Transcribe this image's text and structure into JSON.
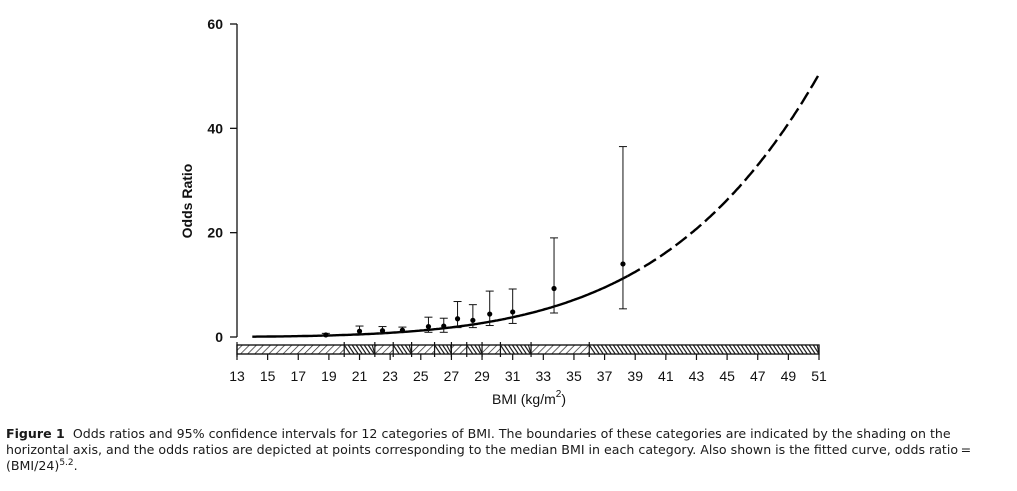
{
  "chart_data": {
    "type": "scatter",
    "xlabel": "BMI (kg/m",
    "xlabel_sup": "2",
    "xlabel_close": ")",
    "ylabel": "Odds Ratio",
    "xlim": [
      13,
      51
    ],
    "ylim": [
      0,
      60
    ],
    "x_ticks": [
      13,
      15,
      17,
      19,
      21,
      23,
      25,
      27,
      29,
      31,
      33,
      35,
      37,
      39,
      41,
      43,
      45,
      47,
      49,
      51
    ],
    "y_ticks": [
      0,
      20,
      40,
      60
    ],
    "points": [
      {
        "x": 18.8,
        "y": 0.4,
        "lo": 0.2,
        "hi": 0.7
      },
      {
        "x": 21.0,
        "y": 1.1,
        "lo": 0.6,
        "hi": 2.1
      },
      {
        "x": 22.5,
        "y": 1.2,
        "lo": 0.7,
        "hi": 2.0
      },
      {
        "x": 23.8,
        "y": 1.3,
        "lo": 0.9,
        "hi": 1.9
      },
      {
        "x": 25.5,
        "y": 2.0,
        "lo": 0.9,
        "hi": 3.8
      },
      {
        "x": 26.5,
        "y": 2.1,
        "lo": 0.9,
        "hi": 3.6
      },
      {
        "x": 27.4,
        "y": 3.5,
        "lo": 1.8,
        "hi": 6.8
      },
      {
        "x": 28.4,
        "y": 3.2,
        "lo": 1.8,
        "hi": 6.2
      },
      {
        "x": 29.5,
        "y": 4.4,
        "lo": 2.2,
        "hi": 8.8
      },
      {
        "x": 31.0,
        "y": 4.8,
        "lo": 2.6,
        "hi": 9.2
      },
      {
        "x": 33.7,
        "y": 9.3,
        "lo": 4.6,
        "hi": 19.0
      },
      {
        "x": 38.2,
        "y": 14.0,
        "lo": 5.4,
        "hi": 36.5
      }
    ],
    "curve": {
      "label": "odds ratio = (BMI/24)^5.2",
      "base": 24,
      "exponent": 5.2,
      "solid_until": 38.5,
      "x_start": 14,
      "x_end": 51
    },
    "category_boundaries": [
      13,
      20,
      22,
      23.2,
      24.4,
      25.9,
      27,
      28,
      29,
      30.2,
      32.2,
      36,
      51
    ]
  },
  "caption": {
    "label": "Figure 1",
    "text": "Odds ratios and 95% confidence intervals for 12 categories of BMI. The boundaries of these categories are indicated by the shading on the horizontal axis, and the odds ratios are depicted at points corresponding to the median BMI in each category. Also shown is the fitted curve, odds ratio = (BMI/24)",
    "sup": "5.2",
    "end": "."
  }
}
